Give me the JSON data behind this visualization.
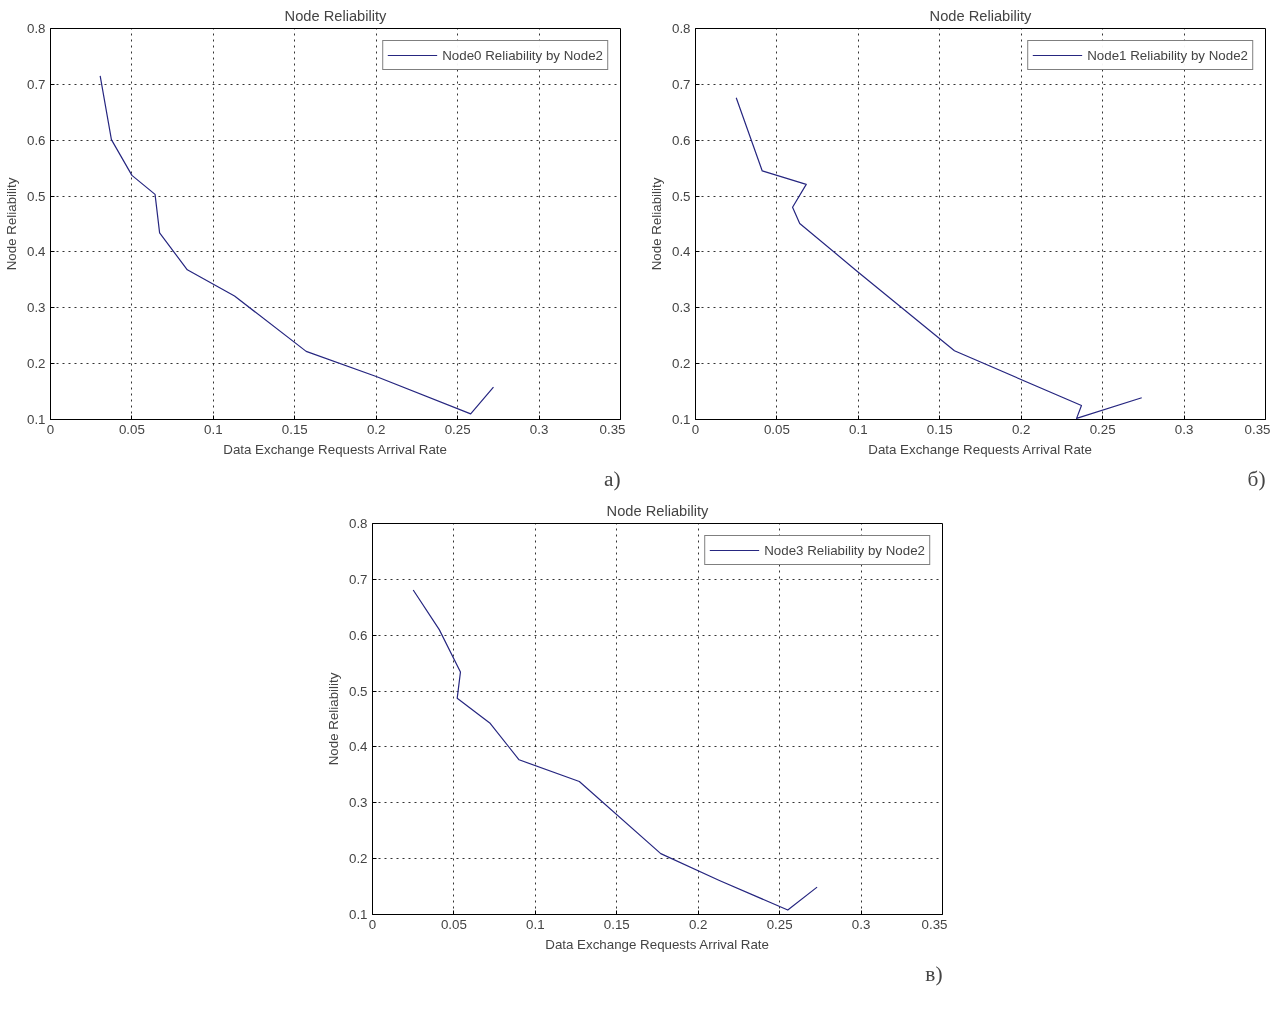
{
  "chart_data": [
    {
      "type": "line",
      "title": "Node Reliability",
      "xlabel": "Data Exchange Requests Arrival Rate",
      "ylabel": "Node Reliability",
      "xlim": [
        0,
        0.35
      ],
      "ylim": [
        0.1,
        0.8
      ],
      "xticks": [
        0,
        0.05,
        0.1,
        0.15,
        0.2,
        0.25,
        0.3,
        0.35
      ],
      "yticks": [
        0.1,
        0.2,
        0.3,
        0.4,
        0.5,
        0.6,
        0.7,
        0.8
      ],
      "grid": true,
      "legend": "top right",
      "annotations": [
        "а)"
      ],
      "series": [
        {
          "name": "Node0 Reliability by Node2",
          "color": "#262680",
          "x": [
            0.0305,
            0.0374,
            0.05,
            0.0642,
            0.067,
            0.084,
            0.113,
            0.157,
            0.2,
            0.258,
            0.272
          ],
          "values": [
            0.715,
            0.601,
            0.537,
            0.503,
            0.434,
            0.368,
            0.321,
            0.222,
            0.177,
            0.11,
            0.158
          ]
        }
      ]
    },
    {
      "type": "line",
      "title": "Node Reliability",
      "xlabel": "Data Exchange Requests Arrival Rate",
      "ylabel": "Node Reliability",
      "xlim": [
        0,
        0.35
      ],
      "ylim": [
        0.1,
        0.8
      ],
      "xticks": [
        0,
        0.05,
        0.1,
        0.15,
        0.2,
        0.25,
        0.3,
        0.35
      ],
      "yticks": [
        0.1,
        0.2,
        0.3,
        0.4,
        0.5,
        0.6,
        0.7,
        0.8
      ],
      "grid": true,
      "legend": "top right",
      "annotations": [
        "б)"
      ],
      "series": [
        {
          "name": "Node1 Reliability by Node2",
          "color": "#262680",
          "x": [
            0.025,
            0.041,
            0.068,
            0.0596,
            0.064,
            0.099,
            0.159,
            0.237,
            0.234,
            0.274
          ],
          "values": [
            0.676,
            0.545,
            0.521,
            0.48,
            0.451,
            0.366,
            0.223,
            0.125,
            0.102,
            0.139
          ]
        }
      ]
    },
    {
      "type": "line",
      "title": "Node Reliability",
      "xlabel": "Data Exchange Requests Arrival Rate",
      "ylabel": "Node Reliability",
      "xlim": [
        0,
        0.35
      ],
      "ylim": [
        0.1,
        0.8
      ],
      "xticks": [
        0,
        0.05,
        0.1,
        0.15,
        0.2,
        0.25,
        0.3,
        0.35
      ],
      "yticks": [
        0.1,
        0.2,
        0.3,
        0.4,
        0.5,
        0.6,
        0.7,
        0.8
      ],
      "grid": true,
      "legend": "top right",
      "annotations": [
        "в)"
      ],
      "series": [
        {
          "name": "Node3 Reliability by Node2",
          "color": "#262680",
          "x": [
            0.025,
            0.041,
            0.054,
            0.052,
            0.072,
            0.09,
            0.127,
            0.177,
            0.213,
            0.255,
            0.273
          ],
          "values": [
            0.681,
            0.61,
            0.534,
            0.487,
            0.443,
            0.377,
            0.338,
            0.209,
            0.161,
            0.108,
            0.149
          ]
        }
      ]
    }
  ]
}
